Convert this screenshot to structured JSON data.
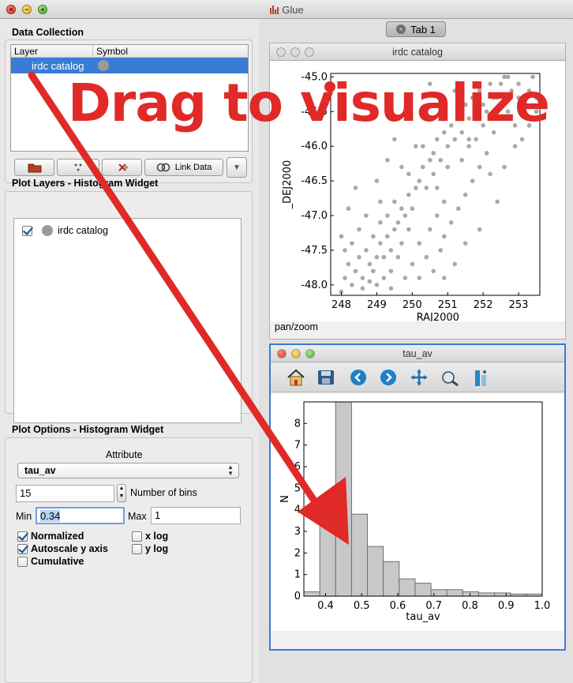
{
  "window": {
    "title": "Glue"
  },
  "data_collection": {
    "title": "Data Collection",
    "columns": [
      "Layer",
      "Symbol"
    ],
    "rows": [
      {
        "name": "irdc catalog",
        "symbol_color": "#9a9a9a"
      }
    ],
    "toolbar": {
      "link_label": "Link Data",
      "dropdown": "▼"
    }
  },
  "plot_layers": {
    "title": "Plot Layers - Histogram Widget",
    "items": [
      {
        "label": "irdc catalog",
        "checked": true
      }
    ]
  },
  "plot_options": {
    "title": "Plot Options - Histogram Widget",
    "attribute_label": "Attribute",
    "attribute_value": "tau_av",
    "bins_value": "15",
    "bins_label": "Number of bins",
    "min_label": "Min",
    "min_value": "0.34",
    "max_label": "Max",
    "max_value": "1",
    "normalized": "Normalized",
    "autoscale": "Autoscale y axis",
    "cumulative": "Cumulative",
    "xlog": "x log",
    "ylog": "y log"
  },
  "tab": {
    "label": "Tab 1"
  },
  "scatter_window": {
    "title": "irdc catalog",
    "status": "pan/zoom"
  },
  "hist_window": {
    "title": "tau_av"
  },
  "overlay": {
    "text": "Drag to visualize",
    "color": "#e02a27"
  },
  "chart_data": [
    {
      "type": "scatter",
      "xlabel": "_RAJ2000",
      "ylabel": "_DEJ2000",
      "xlim": [
        247.7,
        253.6
      ],
      "ylim": [
        -48.15,
        -44.95
      ],
      "xticks": [
        "248",
        "249",
        "250",
        "251",
        "252",
        "253"
      ],
      "yticks": [
        "-48.0",
        "-47.5",
        "-47.0",
        "-46.5",
        "-46.0",
        "-45.5",
        "-45.0"
      ],
      "point_color": "#8c8c8c",
      "points": [
        [
          248.0,
          -48.1
        ],
        [
          248.1,
          -47.9
        ],
        [
          248.3,
          -48.0
        ],
        [
          248.4,
          -47.8
        ],
        [
          248.2,
          -47.7
        ],
        [
          248.6,
          -47.9
        ],
        [
          248.5,
          -47.6
        ],
        [
          248.8,
          -47.7
        ],
        [
          248.7,
          -47.5
        ],
        [
          248.9,
          -47.8
        ],
        [
          249.0,
          -47.6
        ],
        [
          249.1,
          -47.4
        ],
        [
          248.9,
          -47.3
        ],
        [
          249.2,
          -47.6
        ],
        [
          249.3,
          -47.3
        ],
        [
          249.4,
          -47.5
        ],
        [
          249.5,
          -47.2
        ],
        [
          249.3,
          -47.0
        ],
        [
          249.6,
          -47.1
        ],
        [
          249.7,
          -46.9
        ],
        [
          249.5,
          -46.8
        ],
        [
          249.8,
          -47.0
        ],
        [
          249.9,
          -46.7
        ],
        [
          250.0,
          -46.9
        ],
        [
          250.1,
          -46.6
        ],
        [
          249.9,
          -46.4
        ],
        [
          250.2,
          -46.5
        ],
        [
          250.3,
          -46.3
        ],
        [
          250.4,
          -46.6
        ],
        [
          250.5,
          -46.2
        ],
        [
          250.3,
          -46.0
        ],
        [
          250.6,
          -46.1
        ],
        [
          250.7,
          -45.9
        ],
        [
          250.8,
          -46.2
        ],
        [
          250.9,
          -45.8
        ],
        [
          251.0,
          -46.0
        ],
        [
          251.1,
          -45.7
        ],
        [
          251.2,
          -45.9
        ],
        [
          251.3,
          -45.5
        ],
        [
          251.4,
          -45.8
        ],
        [
          251.5,
          -45.4
        ],
        [
          251.6,
          -45.6
        ],
        [
          251.7,
          -45.3
        ],
        [
          251.8,
          -45.5
        ],
        [
          251.9,
          -45.2
        ],
        [
          252.0,
          -45.4
        ],
        [
          252.2,
          -45.1
        ],
        [
          252.4,
          -45.3
        ],
        [
          252.6,
          -45.0
        ],
        [
          252.8,
          -45.2
        ],
        [
          253.0,
          -45.1
        ],
        [
          253.2,
          -45.4
        ],
        [
          253.4,
          -45.0
        ],
        [
          252.5,
          -45.6
        ],
        [
          252.3,
          -45.8
        ],
        [
          252.7,
          -45.5
        ],
        [
          252.9,
          -45.7
        ],
        [
          253.1,
          -45.9
        ],
        [
          252.1,
          -46.1
        ],
        [
          251.9,
          -46.3
        ],
        [
          251.7,
          -46.5
        ],
        [
          252.2,
          -46.4
        ],
        [
          251.5,
          -46.7
        ],
        [
          251.3,
          -46.9
        ],
        [
          251.1,
          -47.1
        ],
        [
          250.9,
          -47.3
        ],
        [
          250.7,
          -47.0
        ],
        [
          250.5,
          -47.2
        ],
        [
          250.8,
          -47.5
        ],
        [
          250.4,
          -47.6
        ],
        [
          250.6,
          -47.8
        ],
        [
          250.2,
          -47.9
        ],
        [
          250.0,
          -47.7
        ],
        [
          249.8,
          -47.9
        ],
        [
          249.6,
          -47.6
        ],
        [
          249.4,
          -47.8
        ],
        [
          249.2,
          -47.9
        ],
        [
          249.0,
          -48.0
        ],
        [
          248.8,
          -47.95
        ],
        [
          248.5,
          -47.2
        ],
        [
          248.3,
          -47.4
        ],
        [
          248.1,
          -47.5
        ],
        [
          248.0,
          -47.3
        ],
        [
          249.1,
          -46.8
        ],
        [
          249.0,
          -46.5
        ],
        [
          250.7,
          -46.6
        ],
        [
          251.0,
          -46.3
        ],
        [
          251.6,
          -46.0
        ],
        [
          251.8,
          -45.9
        ],
        [
          252.0,
          -45.7
        ],
        [
          250.1,
          -46.0
        ],
        [
          249.7,
          -46.3
        ],
        [
          250.4,
          -45.6
        ],
        [
          249.5,
          -45.9
        ],
        [
          249.9,
          -45.3
        ],
        [
          250.5,
          -45.1
        ],
        [
          251.2,
          -45.2
        ],
        [
          250.8,
          -45.4
        ],
        [
          252.6,
          -46.3
        ],
        [
          252.9,
          -46.0
        ],
        [
          253.3,
          -45.7
        ],
        [
          253.5,
          -45.3
        ],
        [
          252.4,
          -46.8
        ],
        [
          251.9,
          -47.2
        ],
        [
          251.5,
          -47.4
        ],
        [
          251.2,
          -47.7
        ],
        [
          250.9,
          -47.9
        ],
        [
          248.6,
          -48.05
        ],
        [
          249.4,
          -48.05
        ],
        [
          248.2,
          -46.9
        ],
        [
          248.4,
          -46.6
        ],
        [
          249.3,
          -46.2
        ],
        [
          250.2,
          -47.4
        ],
        [
          249.9,
          -47.2
        ],
        [
          249.7,
          -47.4
        ],
        [
          249.1,
          -47.1
        ],
        [
          248.7,
          -47.0
        ],
        [
          250.6,
          -46.4
        ],
        [
          250.9,
          -46.8
        ],
        [
          251.4,
          -46.2
        ],
        [
          251.6,
          -45.9
        ],
        [
          252.1,
          -45.5
        ],
        [
          252.3,
          -45.3
        ],
        [
          252.5,
          -45.1
        ],
        [
          252.7,
          -45.0
        ],
        [
          253.0,
          -45.3
        ],
        [
          253.3,
          -45.2
        ],
        [
          253.5,
          -45.5
        ]
      ]
    },
    {
      "type": "bar",
      "xlabel": "tau_av",
      "ylabel": "N",
      "xlim": [
        0.34,
        1.0
      ],
      "ylim": [
        0,
        9.0
      ],
      "xticks": [
        "0.4",
        "0.5",
        "0.6",
        "0.7",
        "0.8",
        "0.9",
        "1.0"
      ],
      "yticks": [
        "0",
        "1",
        "2",
        "3",
        "4",
        "5",
        "6",
        "7",
        "8"
      ],
      "bin_edges": [
        0.34,
        0.384,
        0.428,
        0.472,
        0.516,
        0.56,
        0.604,
        0.648,
        0.692,
        0.736,
        0.78,
        0.824,
        0.868,
        0.912,
        0.956,
        1.0
      ],
      "values": [
        0.2,
        3.4,
        9.0,
        3.8,
        2.3,
        1.6,
        0.8,
        0.6,
        0.3,
        0.3,
        0.2,
        0.15,
        0.15,
        0.1,
        0.1
      ],
      "bar_color": "#c8c8c8"
    }
  ]
}
